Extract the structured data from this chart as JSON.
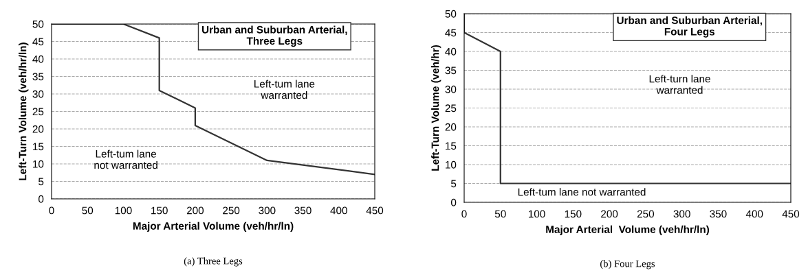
{
  "chart_data": [
    {
      "type": "line",
      "xlabel": "Major Arterial Volume (veh/hr/ln)",
      "ylabel": "Left-Turn Volume (veh/hr/ln)",
      "x": [
        0,
        100,
        150,
        150,
        200,
        200,
        300,
        450
      ],
      "series": [
        {
          "color": "#333333",
          "values": [
            50,
            50,
            46,
            31,
            26,
            21,
            11,
            7
          ]
        }
      ],
      "xlim": [
        0,
        450
      ],
      "ylim": [
        0,
        50
      ],
      "xticks": [
        0,
        50,
        100,
        150,
        200,
        250,
        300,
        350,
        400,
        450
      ],
      "yticks": [
        0,
        5,
        10,
        15,
        20,
        25,
        30,
        35,
        40,
        45,
        50
      ],
      "grid": "y",
      "legend": false,
      "marker": "none",
      "line_style": "solid",
      "annotations": [
        "Urban and Suburban Arterial,\nThree Legs",
        "Left-tum lane\nwarranted",
        "Left-tum lane\nnot warranted",
        "(a) Three Legs"
      ]
    },
    {
      "type": "line",
      "xlabel": "Major Arterial  Volume (veh/hr/ln)",
      "ylabel": "Left-Turn Volume (veh/hr)",
      "x": [
        0,
        0,
        50,
        50,
        450
      ],
      "series": [
        {
          "color": "#333333",
          "values": [
            50,
            45,
            40,
            5,
            5
          ]
        }
      ],
      "xlim": [
        0,
        450
      ],
      "ylim": [
        0,
        50
      ],
      "xticks": [
        0,
        50,
        100,
        150,
        200,
        250,
        300,
        350,
        400,
        450
      ],
      "yticks": [
        0,
        5,
        10,
        15,
        20,
        25,
        30,
        35,
        40,
        45,
        50
      ],
      "grid": "y",
      "legend": false,
      "marker": "none",
      "line_style": "solid",
      "annotations": [
        "Urban and Suburban Arterial,\nFour Legs",
        "Left-turn lane\nwarranted",
        "Left-tum lane not warranted",
        "(b) Four Legs"
      ]
    }
  ]
}
